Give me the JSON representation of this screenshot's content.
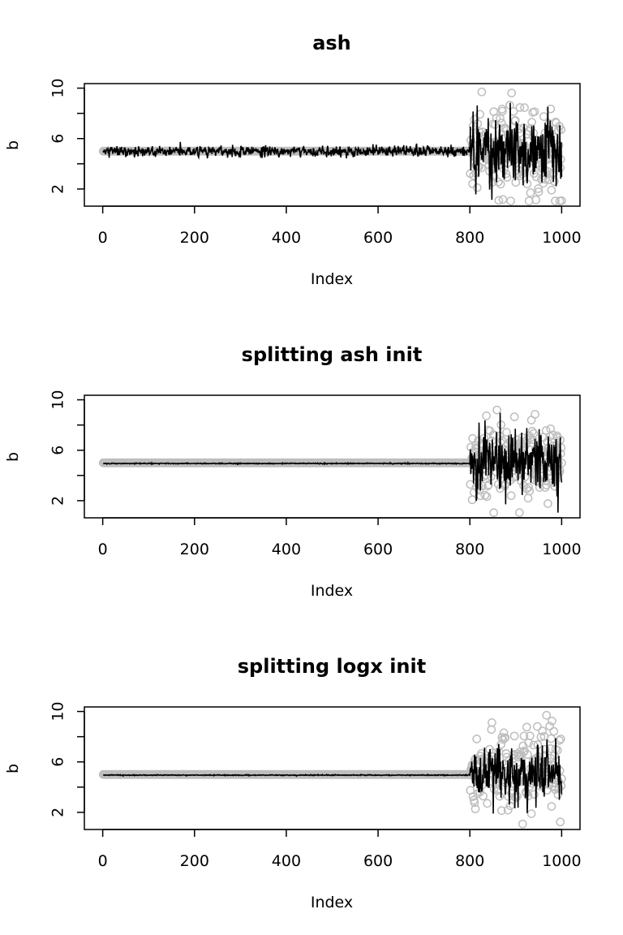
{
  "chart_data": [
    {
      "type": "scatter",
      "title": "ash",
      "xlabel": "Index",
      "ylabel": "b",
      "xlim": [
        0,
        1000
      ],
      "ylim": [
        1,
        10
      ],
      "x_ticks": [
        0,
        200,
        400,
        600,
        800,
        1000
      ],
      "y_ticks": [
        2,
        6,
        10
      ],
      "grid": false,
      "series": [
        {
          "kind": "points",
          "color": "#bebebe",
          "n": 1000,
          "segments": [
            {
              "from": 1,
              "to": 800,
              "level": 5.0,
              "spread": 0.0
            },
            {
              "from": 801,
              "to": 1000,
              "level": 5.2,
              "spread": 4.2
            }
          ]
        },
        {
          "kind": "line",
          "color": "#000000",
          "n": 1000,
          "segments": [
            {
              "from": 1,
              "to": 800,
              "level": 5.0,
              "spread": 0.55
            },
            {
              "from": 801,
              "to": 1000,
              "level": 5.1,
              "spread": 4.2
            }
          ]
        }
      ]
    },
    {
      "type": "scatter",
      "title": "splitting ash init",
      "xlabel": "Index",
      "ylabel": "b",
      "xlim": [
        0,
        1000
      ],
      "ylim": [
        1,
        10
      ],
      "x_ticks": [
        0,
        200,
        400,
        600,
        800,
        1000
      ],
      "y_ticks": [
        2,
        6,
        10
      ],
      "grid": false,
      "series": [
        {
          "kind": "points",
          "color": "#bebebe",
          "n": 1000,
          "segments": [
            {
              "from": 1,
              "to": 800,
              "level": 5.0,
              "spread": 0.0
            },
            {
              "from": 801,
              "to": 1000,
              "level": 5.2,
              "spread": 4.2
            }
          ]
        },
        {
          "kind": "line",
          "color": "#000000",
          "n": 1000,
          "segments": [
            {
              "from": 1,
              "to": 800,
              "level": 4.95,
              "spread": 0.05
            },
            {
              "from": 801,
              "to": 1000,
              "level": 5.0,
              "spread": 3.0
            }
          ]
        }
      ]
    },
    {
      "type": "scatter",
      "title": "splitting logx init",
      "xlabel": "Index",
      "ylabel": "b",
      "xlim": [
        0,
        1000
      ],
      "ylim": [
        1,
        10
      ],
      "x_ticks": [
        0,
        200,
        400,
        600,
        800,
        1000
      ],
      "y_ticks": [
        2,
        6,
        10
      ],
      "grid": false,
      "series": [
        {
          "kind": "points",
          "color": "#bebebe",
          "n": 1000,
          "segments": [
            {
              "from": 1,
              "to": 800,
              "level": 5.0,
              "spread": 0.0
            },
            {
              "from": 801,
              "to": 1000,
              "level": 5.2,
              "spread": 4.2
            }
          ]
        },
        {
          "kind": "line",
          "color": "#000000",
          "n": 1000,
          "segments": [
            {
              "from": 1,
              "to": 800,
              "level": 4.95,
              "spread": 0.05
            },
            {
              "from": 801,
              "to": 1000,
              "level": 5.0,
              "spread": 3.0
            }
          ]
        }
      ]
    }
  ]
}
